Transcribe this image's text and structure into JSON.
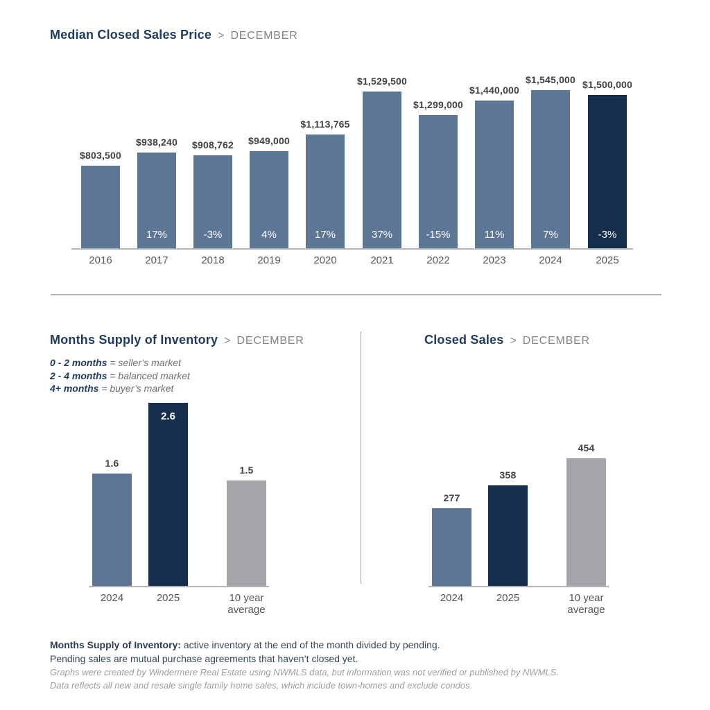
{
  "page": {
    "separator": ">"
  },
  "colors": {
    "primary": "#5d7696",
    "highlight": "#152e4c",
    "neutral": "#a3a5a9",
    "title_navy": "#1e3a5f",
    "period_gray": "#808285",
    "axis_gray": "#b1b3b6"
  },
  "chart_data": [
    {
      "type": "bar",
      "title": "Median Closed Sales Price",
      "period": "DECEMBER",
      "categories": [
        "2016",
        "2017",
        "2018",
        "2019",
        "2020",
        "2021",
        "2022",
        "2023",
        "2024",
        "2025"
      ],
      "values": [
        803500,
        938240,
        908762,
        949000,
        1113765,
        1529500,
        1299000,
        1440000,
        1545000,
        1500000
      ],
      "value_labels": [
        "$803,500",
        "$938,240",
        "$908,762",
        "$949,000",
        "$1,113,765",
        "$1,529,500",
        "$1,299,000",
        "$1,440,000",
        "$1,545,000",
        "$1,500,000"
      ],
      "inside_labels": [
        "",
        "17%",
        "-3%",
        "4%",
        "17%",
        "37%",
        "-15%",
        "11%",
        "7%",
        "-3%"
      ],
      "bar_colors": [
        "primary",
        "primary",
        "primary",
        "primary",
        "primary",
        "primary",
        "primary",
        "primary",
        "primary",
        "highlight"
      ],
      "label_inside_top": [
        false,
        false,
        false,
        false,
        false,
        false,
        false,
        false,
        false,
        false
      ],
      "ylim": [
        0,
        1545000
      ],
      "grid": false,
      "legend_position": "none"
    },
    {
      "type": "bar",
      "title": "Months Supply of Inventory",
      "period": "DECEMBER",
      "categories": [
        "2024",
        "2025",
        "10 year\naverage"
      ],
      "values": [
        1.6,
        2.6,
        1.5
      ],
      "value_labels": [
        "1.6",
        "2.6",
        "1.5"
      ],
      "inside_labels": [
        "",
        "",
        ""
      ],
      "bar_colors": [
        "primary",
        "highlight",
        "neutral"
      ],
      "label_inside_top": [
        false,
        true,
        false
      ],
      "ylim": [
        0,
        2.6
      ],
      "grid": false,
      "legend_position": "none"
    },
    {
      "type": "bar",
      "title": "Closed Sales",
      "period": "DECEMBER",
      "categories": [
        "2024",
        "2025",
        "10 year\naverage"
      ],
      "values": [
        277,
        358,
        454
      ],
      "value_labels": [
        "277",
        "358",
        "454"
      ],
      "inside_labels": [
        "",
        "",
        ""
      ],
      "bar_colors": [
        "primary",
        "highlight",
        "neutral"
      ],
      "label_inside_top": [
        false,
        false,
        false
      ],
      "ylim": [
        0,
        454
      ],
      "grid": false,
      "legend_position": "none"
    }
  ],
  "legend": {
    "lines": [
      {
        "range": "0 - 2 months",
        "desc": "= seller’s market"
      },
      {
        "range": "2 - 4 months",
        "desc": "= balanced market"
      },
      {
        "range": "4+ months",
        "desc": "= buyer’s market"
      }
    ]
  },
  "footer": {
    "definition_bold": "Months Supply of Inventory:",
    "definition_text": " active inventory at the end of the month divided by pending.",
    "definition_line2": "Pending sales are mutual purchase agreements that haven’t closed yet.",
    "disclaimer_line1": "Graphs were created by Windermere Real Estate using NWMLS data, but information was not verified or published by NWMLS.",
    "disclaimer_line2": "Data reflects all new and resale single family home sales, which include town-homes and exclude condos."
  }
}
